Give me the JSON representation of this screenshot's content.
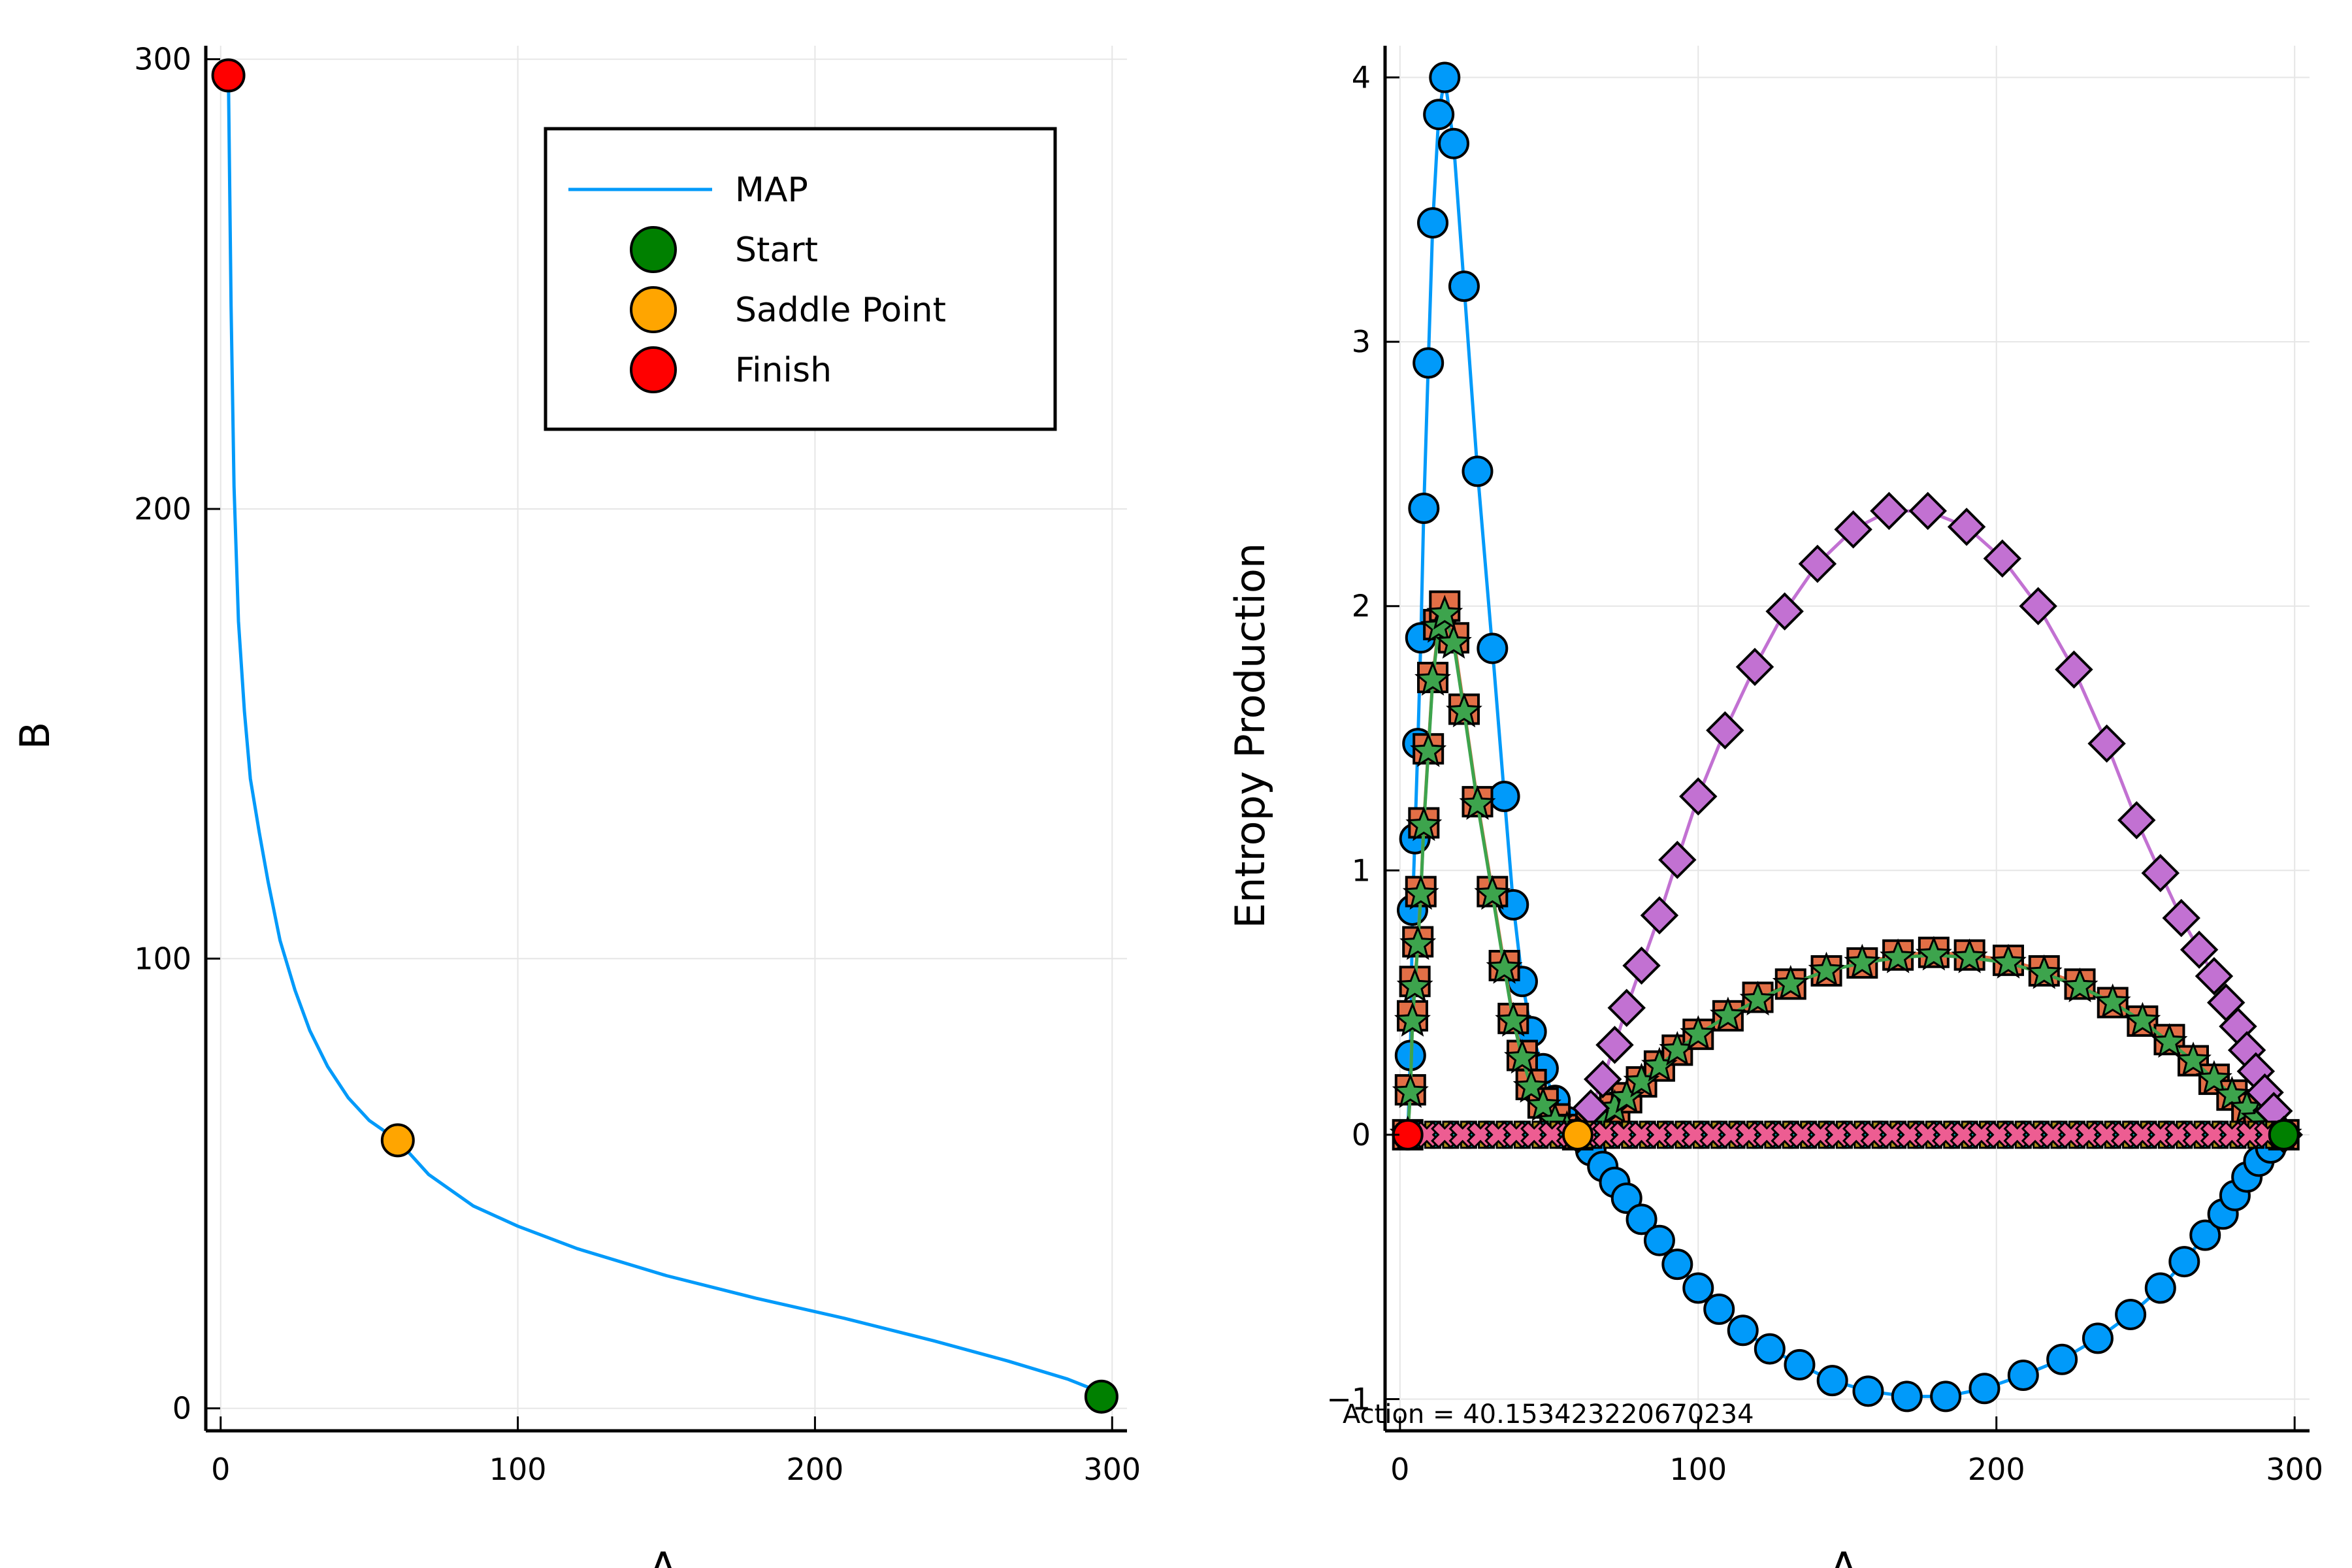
{
  "chart_data": [
    {
      "type": "line",
      "xlabel": "A",
      "ylabel": "B",
      "xlim": [
        -5,
        305
      ],
      "ylim": [
        -5,
        303
      ],
      "xticks": [
        0,
        100,
        200,
        300
      ],
      "yticks": [
        0,
        100,
        200,
        300
      ],
      "x_tick_labels": [
        "0",
        "100",
        "200",
        "300"
      ],
      "y_tick_labels": [
        "0",
        "100",
        "200",
        "300"
      ],
      "grid": true,
      "legend_position": "top-right",
      "series": [
        {
          "name": "MAP",
          "type": "line",
          "color": "#009AFA",
          "x": [
            2.6,
            3.5,
            4.5,
            6,
            8,
            10,
            13,
            16,
            20,
            25,
            30,
            36,
            43,
            50,
            59.6,
            70,
            85,
            100,
            120,
            150,
            180,
            210,
            240,
            265,
            285,
            296.4
          ],
          "y": [
            296.4,
            245,
            205,
            175,
            155,
            140,
            128,
            117,
            104,
            93,
            84,
            76,
            69,
            64,
            59.6,
            52,
            45,
            40.5,
            35.5,
            29.5,
            24.5,
            20,
            15,
            10.5,
            6.5,
            3.5
          ]
        },
        {
          "name": "Start",
          "type": "scatter",
          "color": "#008000",
          "x": [
            296.4
          ],
          "y": [
            2.6
          ]
        },
        {
          "name": "Saddle Point",
          "type": "scatter",
          "color": "#FFA500",
          "x": [
            59.6
          ],
          "y": [
            59.6
          ]
        },
        {
          "name": "Finish",
          "type": "scatter",
          "color": "#FF0000",
          "x": [
            2.6
          ],
          "y": [
            296.4
          ]
        }
      ]
    },
    {
      "type": "scatter",
      "xlabel": "A",
      "ylabel": "Entropy Production",
      "xlim": [
        -5,
        305
      ],
      "ylim": [
        -1.12,
        4.12
      ],
      "xticks": [
        0,
        100,
        200,
        300
      ],
      "yticks": [
        -1,
        0,
        1,
        2,
        3,
        4
      ],
      "x_tick_labels": [
        "0",
        "100",
        "200",
        "300"
      ],
      "y_tick_labels": [
        "−1",
        "0",
        "1",
        "2",
        "3",
        "4"
      ],
      "grid": true,
      "annotation": "Action = 40.153423220670234",
      "series": [
        {
          "color": "#009AFA",
          "marker": "circle",
          "x": [
            2.6,
            3.5,
            4.2,
            5,
            6,
            7,
            8,
            9.5,
            11,
            13,
            15,
            18,
            21.5,
            26,
            31,
            35,
            38,
            41,
            44,
            48,
            52,
            56,
            59.6
          ],
          "y": [
            0,
            0.3,
            0.85,
            1.12,
            1.48,
            1.88,
            2.37,
            2.92,
            3.45,
            3.86,
            4.0,
            3.75,
            3.21,
            2.51,
            1.84,
            1.28,
            0.87,
            0.58,
            0.39,
            0.25,
            0.13,
            0.05,
            0
          ]
        },
        {
          "color": "#009AFA",
          "marker": "circle",
          "x": [
            59.6,
            64,
            68,
            72,
            76,
            81,
            87,
            93,
            100,
            107,
            115,
            124,
            134,
            145,
            157,
            170,
            183,
            196,
            209,
            222,
            234,
            245,
            255,
            263,
            270,
            276,
            280,
            284,
            288,
            292,
            296.4
          ],
          "y": [
            0,
            -0.06,
            -0.12,
            -0.18,
            -0.24,
            -0.32,
            -0.4,
            -0.49,
            -0.58,
            -0.66,
            -0.74,
            -0.81,
            -0.87,
            -0.93,
            -0.97,
            -0.99,
            -0.99,
            -0.96,
            -0.91,
            -0.85,
            -0.77,
            -0.68,
            -0.58,
            -0.48,
            -0.38,
            -0.3,
            -0.23,
            -0.16,
            -0.1,
            -0.05,
            0
          ]
        },
        {
          "color": "#E26F46",
          "marker": "square",
          "x": [
            2.6,
            3.5,
            4.2,
            5,
            6,
            7,
            8,
            9.5,
            11,
            13,
            15,
            18,
            21.5,
            26,
            31,
            35,
            38,
            41,
            44,
            48,
            52,
            56,
            59.6,
            64,
            68,
            72,
            76,
            81,
            87,
            93,
            100,
            110,
            120,
            131,
            143,
            155,
            167,
            179,
            191,
            204,
            216,
            228,
            239,
            249,
            258,
            266,
            273,
            279,
            284,
            288,
            292,
            296.4
          ],
          "y": [
            0,
            0.17,
            0.45,
            0.58,
            0.73,
            0.92,
            1.18,
            1.46,
            1.73,
            1.93,
            2.0,
            1.88,
            1.61,
            1.26,
            0.92,
            0.64,
            0.44,
            0.3,
            0.19,
            0.12,
            0.06,
            0.02,
            0,
            0.03,
            0.06,
            0.1,
            0.14,
            0.2,
            0.26,
            0.32,
            0.38,
            0.45,
            0.52,
            0.57,
            0.62,
            0.65,
            0.68,
            0.69,
            0.68,
            0.66,
            0.62,
            0.57,
            0.5,
            0.43,
            0.36,
            0.28,
            0.21,
            0.15,
            0.1,
            0.06,
            0.03,
            0
          ]
        },
        {
          "color": "#3DA44D",
          "marker": "star",
          "x": [
            2.6,
            3.5,
            4.2,
            5,
            6,
            7,
            8,
            9.5,
            11,
            13,
            15,
            18,
            21.5,
            26,
            31,
            35,
            38,
            41,
            44,
            48,
            52,
            56,
            59.6,
            64,
            68,
            72,
            76,
            81,
            87,
            93,
            100,
            110,
            120,
            131,
            143,
            155,
            167,
            179,
            191,
            204,
            216,
            228,
            239,
            249,
            258,
            266,
            273,
            279,
            284,
            288,
            292,
            296.4
          ],
          "y": [
            0,
            0.16,
            0.43,
            0.56,
            0.72,
            0.91,
            1.17,
            1.45,
            1.72,
            1.92,
            1.97,
            1.86,
            1.6,
            1.25,
            0.91,
            0.63,
            0.43,
            0.29,
            0.18,
            0.11,
            0.05,
            0.02,
            0,
            0.03,
            0.06,
            0.1,
            0.14,
            0.2,
            0.26,
            0.32,
            0.38,
            0.45,
            0.51,
            0.57,
            0.62,
            0.65,
            0.67,
            0.68,
            0.67,
            0.65,
            0.61,
            0.56,
            0.5,
            0.43,
            0.35,
            0.28,
            0.21,
            0.15,
            0.1,
            0.06,
            0.03,
            0
          ]
        },
        {
          "color": "#C271D2",
          "marker": "diamond",
          "x": [
            59.6,
            64,
            68,
            72,
            76,
            81,
            87,
            93,
            100,
            109,
            119,
            129,
            140,
            152,
            164,
            177,
            190,
            202,
            214,
            226,
            237,
            247,
            255,
            262,
            268,
            273,
            277,
            281,
            284,
            287,
            290,
            293,
            296.4
          ],
          "y": [
            0,
            0.1,
            0.21,
            0.34,
            0.48,
            0.64,
            0.83,
            1.04,
            1.28,
            1.53,
            1.77,
            1.98,
            2.16,
            2.29,
            2.36,
            2.36,
            2.3,
            2.18,
            2.0,
            1.76,
            1.48,
            1.19,
            0.99,
            0.82,
            0.7,
            0.6,
            0.5,
            0.41,
            0.32,
            0.24,
            0.16,
            0.09,
            0
          ]
        },
        {
          "color": "#AC8D18",
          "marker": "cross",
          "x": [
            4,
            10,
            16,
            22,
            28,
            34,
            40,
            46,
            52,
            58,
            64,
            70,
            76,
            82,
            88,
            94,
            100,
            106,
            112,
            118,
            124,
            130,
            136,
            142,
            148,
            154,
            160,
            166,
            172,
            178,
            184,
            190,
            196,
            202,
            208,
            214,
            220,
            226,
            232,
            238,
            244,
            250,
            256,
            262,
            268,
            274,
            280,
            286,
            292,
            296
          ],
          "y": [
            0,
            0,
            0,
            0,
            0,
            0,
            0,
            0,
            0,
            0,
            0,
            0,
            0,
            0,
            0,
            0,
            0,
            0,
            0,
            0,
            0,
            0,
            0,
            0,
            0,
            0,
            0,
            0,
            0,
            0,
            0,
            0,
            0,
            0,
            0,
            0,
            0,
            0,
            0,
            0,
            0,
            0,
            0,
            0,
            0,
            0,
            0,
            0,
            0,
            0
          ]
        },
        {
          "color": "#00A9AD",
          "marker": "cross",
          "x": [
            6,
            12,
            18,
            24,
            30,
            36,
            42,
            48,
            54,
            60,
            66,
            72,
            78,
            84,
            90,
            96,
            102,
            108,
            114,
            120,
            126,
            132,
            138,
            144,
            150,
            156,
            162,
            168,
            174,
            180,
            186,
            192,
            198,
            204,
            210,
            216,
            222,
            228,
            234,
            240,
            246,
            252,
            258,
            264,
            270,
            276,
            282,
            288,
            294
          ],
          "y": [
            0,
            0,
            0,
            0,
            0,
            0,
            0,
            0,
            0,
            0,
            0,
            0,
            0,
            0,
            0,
            0,
            0,
            0,
            0,
            0,
            0,
            0,
            0,
            0,
            0,
            0,
            0,
            0,
            0,
            0,
            0,
            0,
            0,
            0,
            0,
            0,
            0,
            0,
            0,
            0,
            0,
            0,
            0,
            0,
            0,
            0,
            0,
            0,
            0
          ]
        },
        {
          "color": "#ED5D92",
          "marker": "x",
          "x": [
            3,
            9,
            15,
            21,
            27,
            33,
            39,
            45,
            51,
            57,
            63,
            69,
            75,
            81,
            87,
            93,
            99,
            105,
            111,
            117,
            123,
            129,
            135,
            141,
            147,
            153,
            159,
            165,
            171,
            177,
            183,
            189,
            195,
            201,
            207,
            213,
            219,
            225,
            231,
            237,
            243,
            249,
            255,
            261,
            267,
            273,
            279,
            285,
            291,
            297
          ],
          "y": [
            0,
            0,
            0,
            0,
            0,
            0,
            0,
            0,
            0,
            0,
            0,
            0,
            0,
            0,
            0,
            0,
            0,
            0,
            0,
            0,
            0,
            0,
            0,
            0,
            0,
            0,
            0,
            0,
            0,
            0,
            0,
            0,
            0,
            0,
            0,
            0,
            0,
            0,
            0,
            0,
            0,
            0,
            0,
            0,
            0,
            0,
            0,
            0,
            0,
            0
          ]
        },
        {
          "color": "#008000",
          "marker": "circle",
          "x": [
            296.4
          ],
          "y": [
            0
          ]
        },
        {
          "color": "#FFA500",
          "marker": "circle",
          "x": [
            59.6
          ],
          "y": [
            0
          ]
        },
        {
          "color": "#FF0000",
          "marker": "circle",
          "x": [
            2.6
          ],
          "y": [
            0
          ]
        }
      ]
    }
  ]
}
